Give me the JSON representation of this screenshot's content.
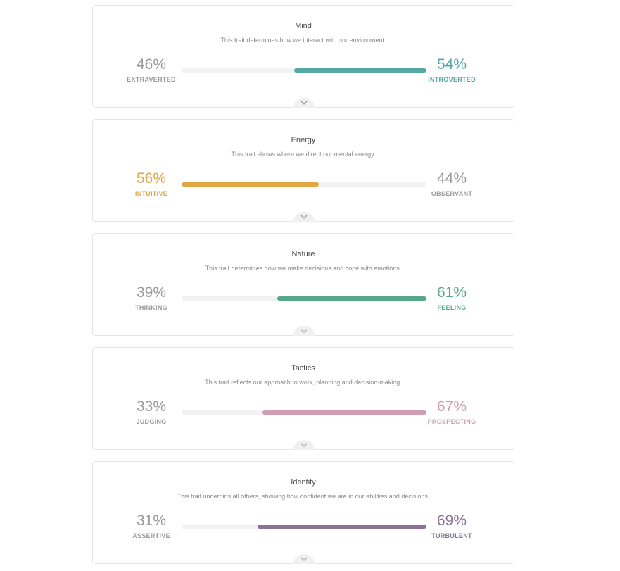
{
  "traits": [
    {
      "title": "Mind",
      "description": "This trait determines how we interact with our environment.",
      "left": {
        "percent": "46%",
        "label": "EXTRAVERTED"
      },
      "right": {
        "percent": "54%",
        "label": "INTROVERTED"
      },
      "dominant": "right",
      "dominant_percent": 54,
      "color": "#56a8a2"
    },
    {
      "title": "Energy",
      "description": "This trait shows where we direct our mental energy.",
      "left": {
        "percent": "56%",
        "label": "INTUITIVE"
      },
      "right": {
        "percent": "44%",
        "label": "OBSERVANT"
      },
      "dominant": "left",
      "dominant_percent": 56,
      "color": "#e2a644"
    },
    {
      "title": "Nature",
      "description": "This trait determines how we make decisions and cope with emotions.",
      "left": {
        "percent": "39%",
        "label": "THINKING"
      },
      "right": {
        "percent": "61%",
        "label": "FEELING"
      },
      "dominant": "right",
      "dominant_percent": 61,
      "color": "#56a889"
    },
    {
      "title": "Tactics",
      "description": "This trait reflects our approach to work, planning and decision-making.",
      "left": {
        "percent": "33%",
        "label": "JUDGING"
      },
      "right": {
        "percent": "67%",
        "label": "PROSPECTING"
      },
      "dominant": "right",
      "dominant_percent": 67,
      "color": "#cf9db1"
    },
    {
      "title": "Identity",
      "description": "This trait underpins all others, showing how confident we are in our abilities and decisions.",
      "left": {
        "percent": "31%",
        "label": "ASSERTIVE"
      },
      "right": {
        "percent": "69%",
        "label": "TURBULENT"
      },
      "dominant": "right",
      "dominant_percent": 69,
      "color": "#8a7299"
    }
  ],
  "neutral_color": "#9a9a9a",
  "toggle_icon": "chevron-down-icon"
}
